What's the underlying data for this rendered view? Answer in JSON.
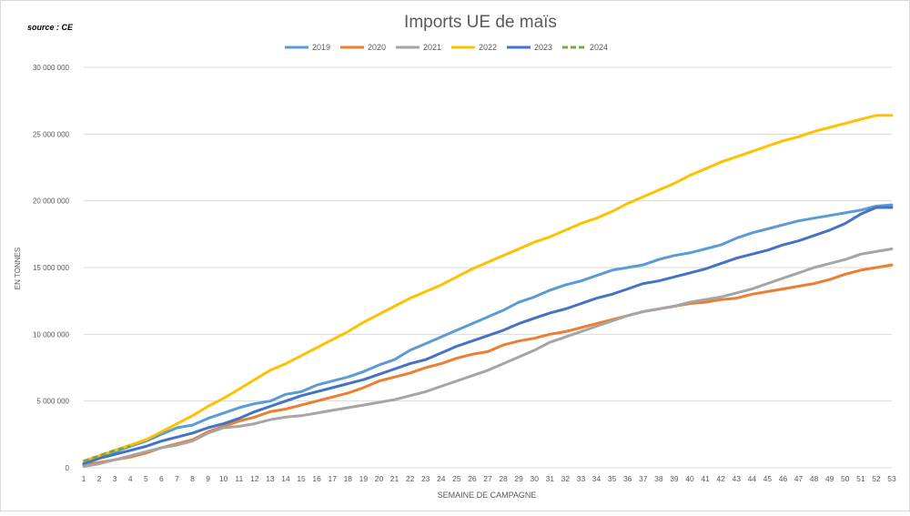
{
  "source_note": "source : CE",
  "chart_data": {
    "type": "line",
    "title": "Imports UE de maïs",
    "xlabel": "SEMAINE DE CAMPAGNE",
    "ylabel": "EN TONNES",
    "legend_position": "top",
    "grid": true,
    "ylim": [
      0,
      30000000
    ],
    "y_ticks": [
      0,
      5000000,
      10000000,
      15000000,
      20000000,
      25000000,
      30000000
    ],
    "y_tick_labels": [
      "0",
      "5 000 000",
      "10 000 000",
      "15 000 000",
      "20 000 000",
      "25 000 000",
      "30 000 000"
    ],
    "x": [
      1,
      2,
      3,
      4,
      5,
      6,
      7,
      8,
      9,
      10,
      11,
      12,
      13,
      14,
      15,
      16,
      17,
      18,
      19,
      20,
      21,
      22,
      23,
      24,
      25,
      26,
      27,
      28,
      29,
      30,
      31,
      32,
      33,
      34,
      35,
      36,
      37,
      38,
      39,
      40,
      41,
      42,
      43,
      44,
      45,
      46,
      47,
      48,
      49,
      50,
      51,
      52,
      53
    ],
    "series": [
      {
        "name": "2019",
        "color": "#5b9bd5",
        "dashed": false,
        "values": [
          300000,
          800000,
          1200000,
          1600000,
          2000000,
          2500000,
          3000000,
          3200000,
          3700000,
          4100000,
          4500000,
          4800000,
          5000000,
          5500000,
          5700000,
          6200000,
          6500000,
          6800000,
          7200000,
          7700000,
          8100000,
          8800000,
          9300000,
          9800000,
          10300000,
          10800000,
          11300000,
          11800000,
          12400000,
          12800000,
          13300000,
          13700000,
          14000000,
          14400000,
          14800000,
          15000000,
          15200000,
          15600000,
          15900000,
          16100000,
          16400000,
          16700000,
          17200000,
          17600000,
          17900000,
          18200000,
          18500000,
          18700000,
          18900000,
          19100000,
          19300000,
          19600000,
          19700000
        ]
      },
      {
        "name": "2020",
        "color": "#ed7d31",
        "dashed": false,
        "values": [
          200000,
          400000,
          600000,
          800000,
          1100000,
          1500000,
          1800000,
          2100000,
          2700000,
          3100000,
          3500000,
          3800000,
          4200000,
          4400000,
          4700000,
          5000000,
          5300000,
          5600000,
          6000000,
          6500000,
          6800000,
          7100000,
          7500000,
          7800000,
          8200000,
          8500000,
          8700000,
          9200000,
          9500000,
          9700000,
          10000000,
          10200000,
          10500000,
          10800000,
          11100000,
          11400000,
          11700000,
          11900000,
          12100000,
          12300000,
          12400000,
          12600000,
          12700000,
          13000000,
          13200000,
          13400000,
          13600000,
          13800000,
          14100000,
          14500000,
          14800000,
          15000000,
          15200000
        ]
      },
      {
        "name": "2021",
        "color": "#a5a5a5",
        "dashed": false,
        "values": [
          100000,
          300000,
          600000,
          900000,
          1200000,
          1500000,
          1700000,
          2000000,
          2600000,
          3000000,
          3100000,
          3300000,
          3600000,
          3800000,
          3900000,
          4100000,
          4300000,
          4500000,
          4700000,
          4900000,
          5100000,
          5400000,
          5700000,
          6100000,
          6500000,
          6900000,
          7300000,
          7800000,
          8300000,
          8800000,
          9400000,
          9800000,
          10200000,
          10600000,
          11000000,
          11400000,
          11700000,
          11900000,
          12100000,
          12400000,
          12600000,
          12800000,
          13100000,
          13400000,
          13800000,
          14200000,
          14600000,
          15000000,
          15300000,
          15600000,
          16000000,
          16200000,
          16400000
        ]
      },
      {
        "name": "2022",
        "color": "#ffc000",
        "dashed": false,
        "values": [
          500000,
          900000,
          1300000,
          1700000,
          2100000,
          2700000,
          3300000,
          3900000,
          4600000,
          5200000,
          5900000,
          6600000,
          7300000,
          7800000,
          8400000,
          9000000,
          9600000,
          10200000,
          10900000,
          11500000,
          12100000,
          12700000,
          13200000,
          13700000,
          14300000,
          14900000,
          15400000,
          15900000,
          16400000,
          16900000,
          17300000,
          17800000,
          18300000,
          18700000,
          19200000,
          19800000,
          20300000,
          20800000,
          21300000,
          21900000,
          22400000,
          22900000,
          23300000,
          23700000,
          24100000,
          24500000,
          24800000,
          25200000,
          25500000,
          25800000,
          26100000,
          26400000,
          26400000
        ]
      },
      {
        "name": "2023",
        "color": "#4472c4",
        "dashed": false,
        "values": [
          300000,
          700000,
          1000000,
          1300000,
          1600000,
          2000000,
          2300000,
          2600000,
          3000000,
          3300000,
          3700000,
          4200000,
          4600000,
          5000000,
          5400000,
          5700000,
          6000000,
          6300000,
          6600000,
          7000000,
          7400000,
          7800000,
          8100000,
          8600000,
          9100000,
          9500000,
          9900000,
          10300000,
          10800000,
          11200000,
          11600000,
          11900000,
          12300000,
          12700000,
          13000000,
          13400000,
          13800000,
          14000000,
          14300000,
          14600000,
          14900000,
          15300000,
          15700000,
          16000000,
          16300000,
          16700000,
          17000000,
          17400000,
          17800000,
          18300000,
          19000000,
          19500000,
          19500000
        ]
      },
      {
        "name": "2024",
        "color": "#70ad47",
        "dashed": true,
        "values": [
          500000,
          900000,
          1300000,
          1600000,
          null,
          null,
          null,
          null,
          null,
          null,
          null,
          null,
          null,
          null,
          null,
          null,
          null,
          null,
          null,
          null,
          null,
          null,
          null,
          null,
          null,
          null,
          null,
          null,
          null,
          null,
          null,
          null,
          null,
          null,
          null,
          null,
          null,
          null,
          null,
          null,
          null,
          null,
          null,
          null,
          null,
          null,
          null,
          null,
          null,
          null,
          null,
          null,
          null
        ]
      }
    ]
  }
}
